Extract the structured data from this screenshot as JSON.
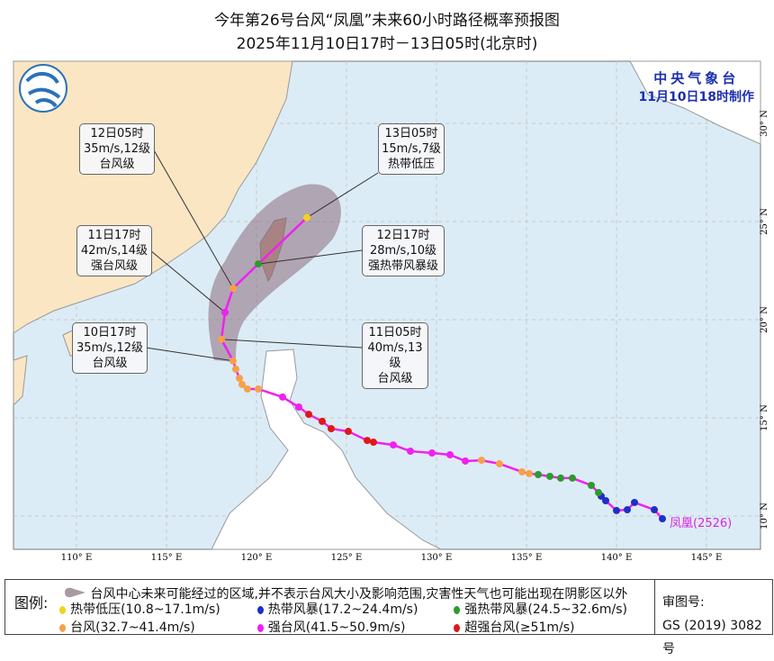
{
  "title": {
    "line1": "今年第26号台风“凤凰”未来60小时路径概率预报图",
    "line2": "2025年11月10日17时－13日05时(北京时)"
  },
  "agency": {
    "name": "中央气象台",
    "made": "11月10日18时制作"
  },
  "typhoon_label": "凤凰(2526)",
  "axes": {
    "lon_ticks": [
      "110° E",
      "115° E",
      "120° E",
      "125° E",
      "130° E",
      "135° E",
      "140° E",
      "145° E"
    ],
    "lat_ticks": [
      "10° N",
      "15° N",
      "20° N",
      "25° N",
      "30° N"
    ]
  },
  "colors": {
    "tropical_depression": "#f2d21c",
    "tropical_storm": "#1e2fc8",
    "severe_tropical_storm": "#2e9a2e",
    "typhoon": "#f7a04a",
    "severe_typhoon": "#f020f0",
    "super_typhoon": "#e01818",
    "track": "#f020f0",
    "cone": "#8c6c7c",
    "sea": "#dcecf6",
    "mainland": "#fbe6c4"
  },
  "past_track": [
    [
      142.55,
      9.86,
      "tropical_storm"
    ],
    [
      142.1,
      10.32,
      "tropical_storm"
    ],
    [
      141.0,
      10.69,
      "tropical_storm"
    ],
    [
      140.6,
      10.32,
      "tropical_storm"
    ],
    [
      140.0,
      10.28,
      "tropical_storm"
    ],
    [
      139.4,
      10.78,
      "tropical_storm"
    ],
    [
      139.15,
      11.01,
      "tropical_storm"
    ],
    [
      139.0,
      11.19,
      "severe_tropical_storm"
    ],
    [
      138.6,
      11.56,
      "severe_tropical_storm"
    ],
    [
      137.55,
      11.93,
      "severe_tropical_storm"
    ],
    [
      136.9,
      11.93,
      "severe_tropical_storm"
    ],
    [
      136.3,
      12.02,
      "severe_tropical_storm"
    ],
    [
      135.65,
      12.11,
      "severe_tropical_storm"
    ],
    [
      135.15,
      12.16,
      "typhoon"
    ],
    [
      134.75,
      12.25,
      "typhoon"
    ],
    [
      133.5,
      12.66,
      "typhoon"
    ],
    [
      132.5,
      12.84,
      "typhoon"
    ],
    [
      131.6,
      12.8,
      "severe_typhoon"
    ],
    [
      130.75,
      13.12,
      "severe_typhoon"
    ],
    [
      129.75,
      13.21,
      "severe_typhoon"
    ],
    [
      128.55,
      13.3,
      "severe_typhoon"
    ],
    [
      127.6,
      13.62,
      "severe_typhoon"
    ],
    [
      126.5,
      13.76,
      "super_typhoon"
    ],
    [
      126.15,
      13.85,
      "super_typhoon"
    ],
    [
      125.1,
      14.31,
      "super_typhoon"
    ],
    [
      124.15,
      14.45,
      "super_typhoon"
    ],
    [
      123.65,
      14.82,
      "super_typhoon"
    ],
    [
      122.9,
      15.18,
      "super_typhoon"
    ],
    [
      122.35,
      15.55,
      "severe_typhoon"
    ],
    [
      121.45,
      16.06,
      "severe_typhoon"
    ],
    [
      120.1,
      16.47,
      "typhoon"
    ],
    [
      119.5,
      16.47,
      "typhoon"
    ],
    [
      119.2,
      16.7,
      "typhoon"
    ],
    [
      119.05,
      17.02,
      "typhoon"
    ],
    [
      118.85,
      17.48,
      "typhoon"
    ]
  ],
  "forecast": [
    {
      "time": "10日17时",
      "wind": "35m/s,12级",
      "level": "台风级",
      "lon": 118.7,
      "lat": 17.9,
      "cat": "typhoon"
    },
    {
      "time": "11日05时",
      "wind": "40m/s,13级",
      "level": "台风级",
      "lon": 118.05,
      "lat": 19.0,
      "cat": "typhoon"
    },
    {
      "time": "11日17时",
      "wind": "42m/s,14级",
      "level": "强台风级",
      "lon": 118.25,
      "lat": 20.37,
      "cat": "severe_typhoon"
    },
    {
      "time": "12日05时",
      "wind": "35m/s,12级",
      "level": "台风级",
      "lon": 118.7,
      "lat": 21.6,
      "cat": "typhoon"
    },
    {
      "time": "12日17时",
      "wind": "28m/s,10级",
      "level": "强热带风暴级",
      "lon": 120.1,
      "lat": 22.84,
      "cat": "severe_tropical_storm"
    },
    {
      "time": "13日05时",
      "wind": "15m/s,7级",
      "level": "热带低压",
      "lon": 122.8,
      "lat": 25.2,
      "cat": "tropical_depression"
    }
  ],
  "legend": {
    "label": "图例:",
    "cone_text": "台风中心未来可能经过的区域,并不表示台风大小及影响范围,灾害性天气也可能出现在阴影区以外",
    "items": [
      {
        "text": "热带低压(10.8~17.1m/s)",
        "cat": "tropical_depression"
      },
      {
        "text": "热带风暴(17.2~24.4m/s)",
        "cat": "tropical_storm"
      },
      {
        "text": "强热带风暴(24.5~32.6m/s)",
        "cat": "severe_tropical_storm"
      },
      {
        "text": "台风(32.7~41.4m/s)",
        "cat": "typhoon"
      },
      {
        "text": "强台风(41.5~50.9m/s)",
        "cat": "severe_typhoon"
      },
      {
        "text": "超强台风(≥51m/s)",
        "cat": "super_typhoon"
      }
    ],
    "review_label": "审图号:",
    "review_number": "GS (2019) 3082号"
  }
}
